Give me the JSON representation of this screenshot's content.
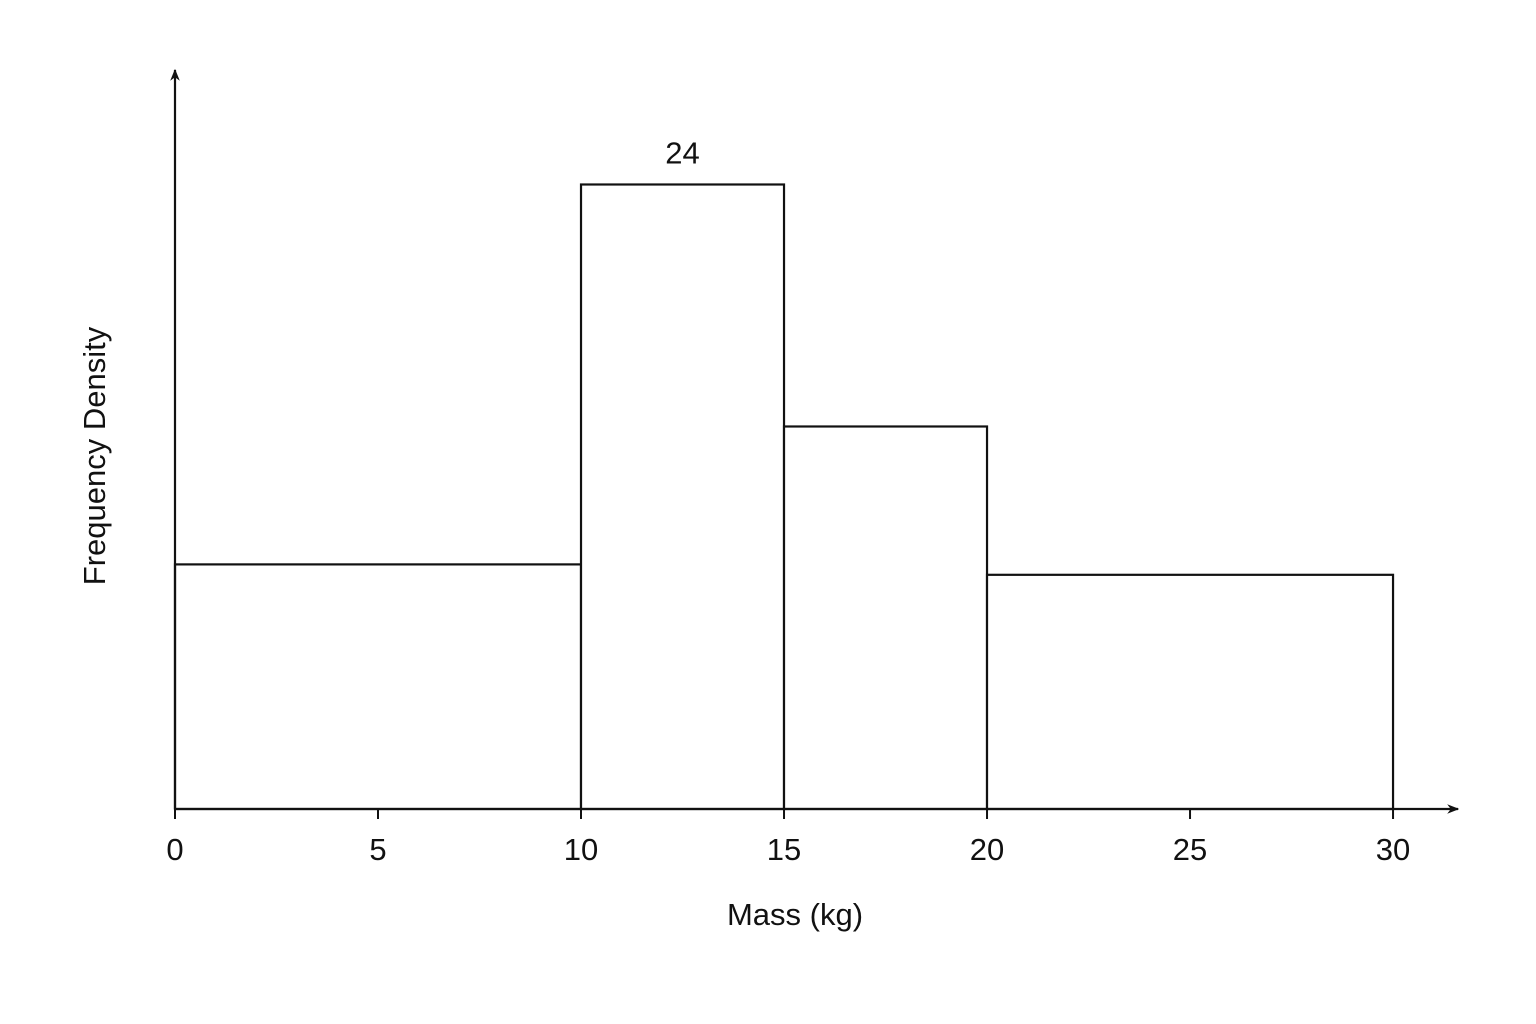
{
  "chart_data": {
    "type": "histogram",
    "x_label": "Mass (kg)",
    "y_label": "Frequency Density",
    "bins": [
      0,
      10,
      15,
      20,
      30
    ],
    "values": [
      9.4,
      24,
      14.7,
      9.0
    ],
    "value_labels": [
      null,
      "24",
      null,
      null
    ],
    "xlim": [
      0,
      31.6
    ],
    "xticks": [
      0,
      5,
      10,
      15,
      20,
      25,
      30
    ],
    "ylim": [
      0,
      28.4
    ],
    "color": "#ffffff",
    "edgecolor": "#111111",
    "grid": false
  }
}
